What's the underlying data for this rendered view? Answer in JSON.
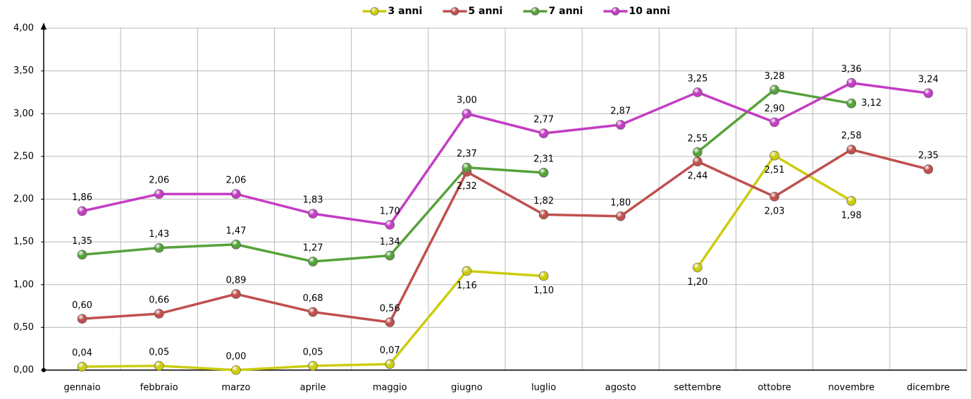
{
  "chart_data": {
    "type": "line",
    "categories": [
      "gennaio",
      "febbraio",
      "marzo",
      "aprile",
      "maggio",
      "giugno",
      "luglio",
      "agosto",
      "settembre",
      "ottobre",
      "novembre",
      "dicembre"
    ],
    "series": [
      {
        "name": "3 anni",
        "color": "#cccc10",
        "values": [
          0.04,
          0.05,
          0.0,
          0.05,
          0.07,
          1.16,
          1.1,
          null,
          1.2,
          2.51,
          1.98,
          null
        ],
        "value_labels": [
          "0,04",
          "0,05",
          "0,00",
          "0,05",
          "0,07",
          "1,16",
          "1,10",
          null,
          "1,20",
          "2,51",
          "1,98",
          null
        ]
      },
      {
        "name": "5 anni",
        "color": "#c0504d",
        "values": [
          0.6,
          0.66,
          0.89,
          0.68,
          0.56,
          2.32,
          1.82,
          1.8,
          2.44,
          2.03,
          2.58,
          2.35
        ],
        "value_labels": [
          "0,60",
          "0,66",
          "0,89",
          "0,68",
          "0,56",
          "2,32",
          "1,82",
          "1,80",
          "2,44",
          "2,03",
          "2,58",
          "2,35"
        ]
      },
      {
        "name": "7 anni",
        "color": "#56a23a",
        "values": [
          1.35,
          1.43,
          1.47,
          1.27,
          1.34,
          2.37,
          2.31,
          null,
          2.55,
          3.28,
          3.12,
          null
        ],
        "value_labels": [
          "1,35",
          "1,43",
          "1,47",
          "1,27",
          "1,34",
          "2,37",
          "2,31",
          null,
          "2,55",
          "3,28",
          "3,12",
          null
        ]
      },
      {
        "name": "10 anni",
        "color": "#c43cc4",
        "values": [
          1.86,
          2.06,
          2.06,
          1.83,
          1.7,
          3.0,
          2.77,
          2.87,
          3.25,
          2.9,
          3.36,
          3.24
        ],
        "value_labels": [
          "1,86",
          "2,06",
          "2,06",
          "1,83",
          "1,70",
          "3,00",
          "2,77",
          "2,87",
          "3,25",
          "2,90",
          "3,36",
          "3,24"
        ]
      }
    ],
    "ylim": [
      0,
      4
    ],
    "yticks": [
      {
        "value": 0,
        "label": "0,00"
      },
      {
        "value": 0.5,
        "label": "0,50"
      },
      {
        "value": 1,
        "label": "1,00"
      },
      {
        "value": 1.5,
        "label": "1,50"
      },
      {
        "value": 2,
        "label": "2,00"
      },
      {
        "value": 2.5,
        "label": "2,50"
      },
      {
        "value": 3,
        "label": "3,00"
      },
      {
        "value": 3.5,
        "label": "3,50"
      },
      {
        "value": 4,
        "label": "4,00"
      }
    ],
    "grid": true,
    "legend": "top"
  }
}
